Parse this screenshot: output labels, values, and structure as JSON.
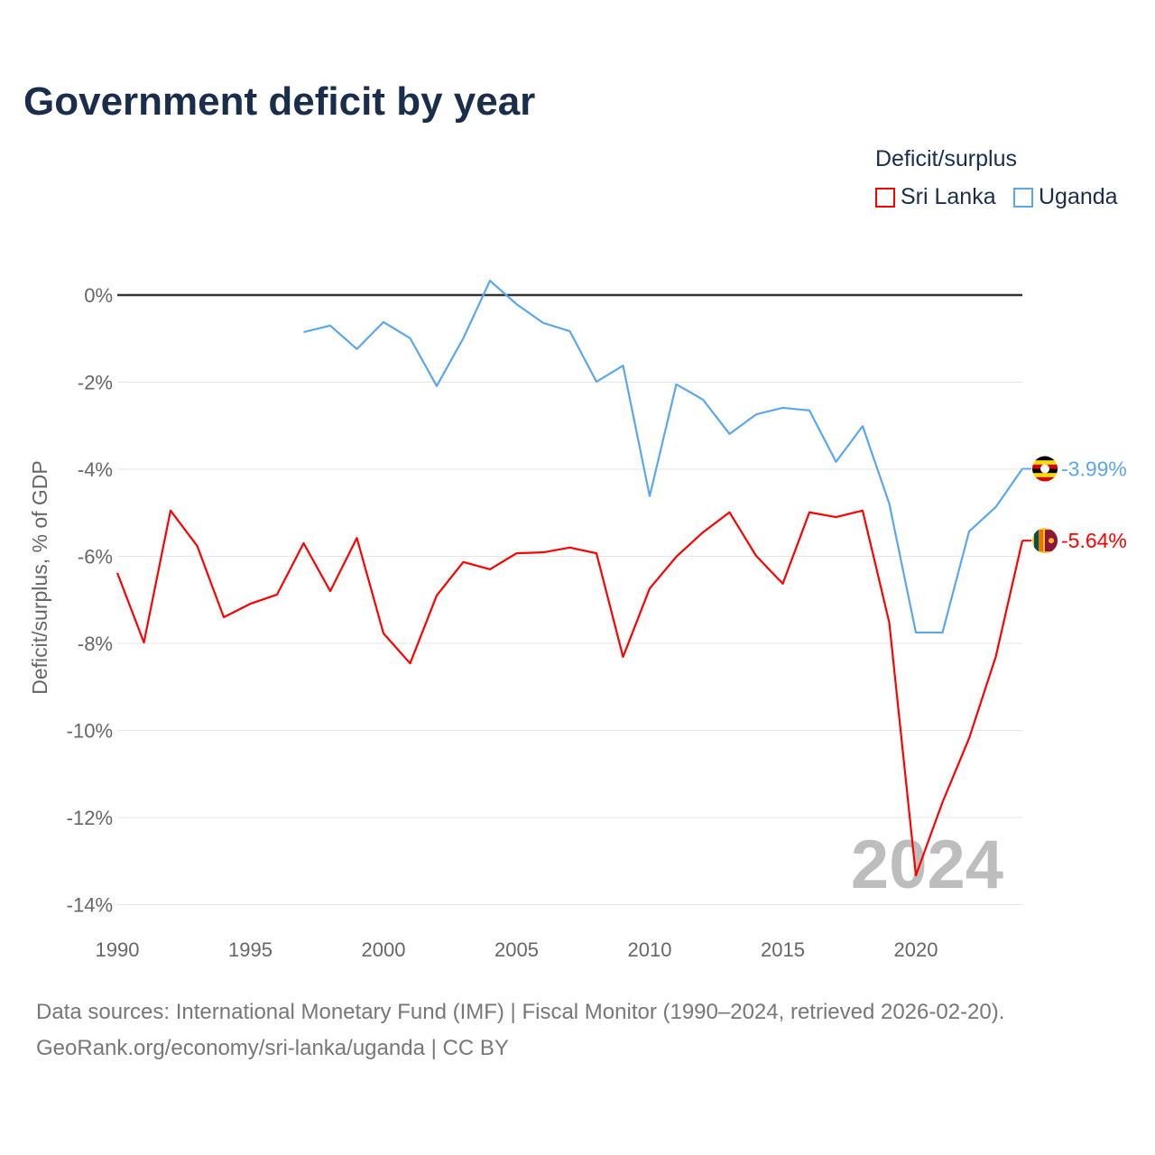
{
  "chart_data": {
    "type": "line",
    "title": "Government deficit by year",
    "xlabel": "",
    "ylabel": "Deficit/surplus, % of GDP",
    "xlim": [
      1990,
      2024
    ],
    "ylim": [
      -14,
      0.6
    ],
    "x_ticks": [
      1990,
      1995,
      2000,
      2005,
      2010,
      2015,
      2020
    ],
    "x_tick_labels": [
      "1990",
      "1995",
      "2000",
      "2005",
      "2010",
      "2015",
      "2020"
    ],
    "y_ticks": [
      0,
      -2,
      -4,
      -6,
      -8,
      -10,
      -12,
      -14
    ],
    "y_tick_labels": [
      "0%",
      "-2%",
      "-4%",
      "-6%",
      "-8%",
      "-10%",
      "-12%",
      "-14%"
    ],
    "legend_title": "Deficit/surplus",
    "legend_position": "top-right",
    "watermark_year": "2024",
    "series": [
      {
        "name": "Sri Lanka",
        "color": "#ff0000",
        "end_label": "-5.64%",
        "x": [
          1990,
          1991,
          1992,
          1993,
          1994,
          1995,
          1996,
          1997,
          1998,
          1999,
          2000,
          2001,
          2002,
          2003,
          2004,
          2005,
          2006,
          2007,
          2008,
          2009,
          2010,
          2011,
          2012,
          2013,
          2014,
          2015,
          2016,
          2017,
          2018,
          2019,
          2020,
          2021,
          2022,
          2023,
          2024
        ],
        "values": [
          -6.38,
          -7.98,
          -4.95,
          -5.76,
          -7.4,
          -7.09,
          -6.88,
          -5.7,
          -6.8,
          -5.58,
          -7.77,
          -8.46,
          -6.9,
          -6.13,
          -6.3,
          -5.93,
          -5.91,
          -5.8,
          -5.93,
          -8.31,
          -6.74,
          -6.01,
          -5.45,
          -4.99,
          -5.99,
          -6.63,
          -4.99,
          -5.1,
          -4.95,
          -7.52,
          -13.33,
          -11.65,
          -10.18,
          -8.31,
          -5.64
        ]
      },
      {
        "name": "Uganda",
        "color": "#5ba7ee",
        "end_label": "-3.99%",
        "x": [
          1997,
          1998,
          1999,
          2000,
          2001,
          2002,
          2003,
          2004,
          2005,
          2006,
          2007,
          2008,
          2009,
          2010,
          2011,
          2012,
          2013,
          2014,
          2015,
          2016,
          2017,
          2018,
          2019,
          2020,
          2021,
          2022,
          2023,
          2024
        ],
        "values": [
          -0.85,
          -0.7,
          -1.24,
          -0.62,
          -0.99,
          -2.09,
          -0.99,
          0.33,
          -0.21,
          -0.64,
          -0.83,
          -1.99,
          -1.62,
          -4.62,
          -2.05,
          -2.4,
          -3.19,
          -2.74,
          -2.59,
          -2.65,
          -3.83,
          -3.01,
          -4.79,
          -7.75,
          -7.75,
          -5.43,
          -4.87,
          -3.99
        ]
      }
    ]
  },
  "footer": {
    "line1": "Data sources: International Monetary Fund (IMF) | Fiscal Monitor (1990–2024, retrieved 2026-02-20).",
    "line2": "GeoRank.org/economy/sri-lanka/uganda | CC BY"
  }
}
